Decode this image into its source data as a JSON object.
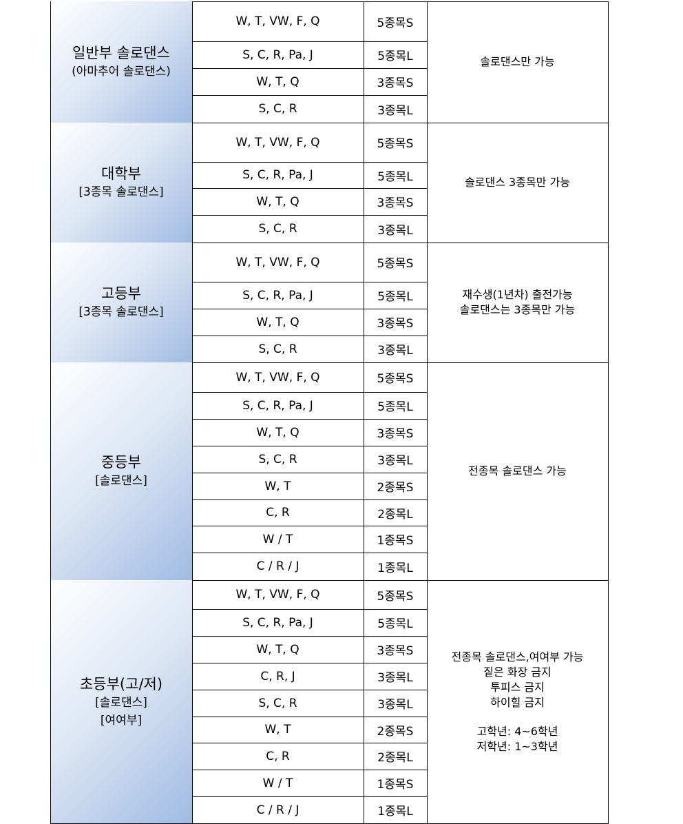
{
  "groups": [
    {
      "title": "일반부 솔로댄스",
      "subtitles": [
        "(아마추어 솔로댄스)"
      ],
      "rows": [
        {
          "dances": "W, T, VW, F, Q",
          "event": "5종목S"
        },
        {
          "dances": "S, C, R, Pa, J",
          "event": "5종목L"
        },
        {
          "dances": "W, T, Q",
          "event": "3종목S"
        },
        {
          "dances": "S, C, R",
          "event": "3종목L"
        }
      ],
      "notes": [
        [
          "솔로댄스만 가능"
        ]
      ]
    },
    {
      "title": "대학부",
      "subtitles": [
        "[3종목 솔로댄스]"
      ],
      "rows": [
        {
          "dances": "W, T, VW, F, Q",
          "event": "5종목S"
        },
        {
          "dances": "S, C, R, Pa, J",
          "event": "5종목L"
        },
        {
          "dances": "W, T, Q",
          "event": "3종목S"
        },
        {
          "dances": "S, C, R",
          "event": "3종목L"
        }
      ],
      "notes": [
        [
          "솔로댄스 3종목만 가능"
        ]
      ]
    },
    {
      "title": "고등부",
      "subtitles": [
        "[3종목 솔로댄스]"
      ],
      "rows": [
        {
          "dances": "W, T, VW, F, Q",
          "event": "5종목S"
        },
        {
          "dances": "S, C, R, Pa, J",
          "event": "5종목L"
        },
        {
          "dances": "W, T, Q",
          "event": "3종목S"
        },
        {
          "dances": "S, C, R",
          "event": "3종목L"
        }
      ],
      "notes": [
        [
          "재수생(1년차) 출전가능",
          "솔로댄스는 3종목만 가능"
        ]
      ]
    },
    {
      "title": "중등부",
      "subtitles": [
        "[솔로댄스]"
      ],
      "rows": [
        {
          "dances": "W, T, VW, F, Q",
          "event": "5종목S"
        },
        {
          "dances": "S, C, R, Pa, J",
          "event": "5종목L"
        },
        {
          "dances": "W, T, Q",
          "event": "3종목S"
        },
        {
          "dances": "S, C, R",
          "event": "3종목L"
        },
        {
          "dances": "W, T",
          "event": "2종목S"
        },
        {
          "dances": "C, R",
          "event": "2종목L"
        },
        {
          "dances": "W / T",
          "event": "1종목S"
        },
        {
          "dances": "C / R / J",
          "event": "1종목L"
        }
      ],
      "notes": [
        [
          "전종목 솔로댄스 가능"
        ]
      ]
    },
    {
      "title": "초등부(고/저)",
      "subtitles": [
        "[솔로댄스]",
        "[여여부]"
      ],
      "rows": [
        {
          "dances": "W, T, VW, F, Q",
          "event": "5종목S"
        },
        {
          "dances": "S, C, R, Pa, J",
          "event": "5종목L"
        },
        {
          "dances": "W, T, Q",
          "event": "3종목S"
        },
        {
          "dances": "C, R, J",
          "event": "3종목L"
        },
        {
          "dances": "S, C, R",
          "event": "3종목L"
        },
        {
          "dances": "W, T",
          "event": "2종목S"
        },
        {
          "dances": "C, R",
          "event": "2종목L"
        },
        {
          "dances": "W / T",
          "event": "1종목S"
        },
        {
          "dances": "C / R / J",
          "event": "1종목L"
        }
      ],
      "notes": [
        [
          "전종목 솔로댄스,여여부 가능",
          "짙은 화장 금지",
          "투피스 금지",
          "하이힐 금지"
        ],
        [
          "고학년: 4~6학년",
          "저학년: 1~3학년"
        ]
      ]
    }
  ]
}
